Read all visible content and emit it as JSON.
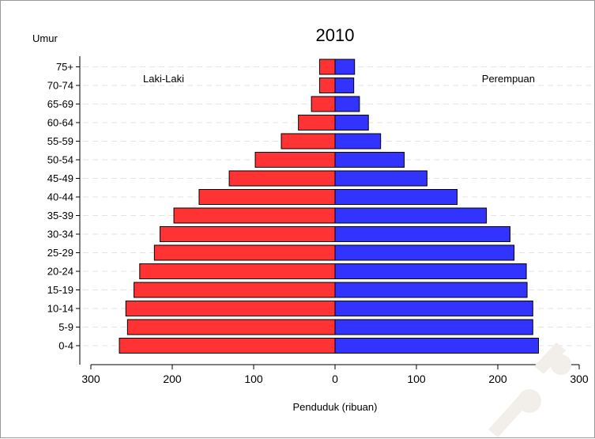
{
  "chart_data": {
    "type": "bar",
    "subtype": "population-pyramid",
    "title": "2010",
    "ylabel": "Umur",
    "xlabel": "Penduduk (ribuan)",
    "categories": [
      "0-4",
      "5-9",
      "10-14",
      "15-19",
      "20-24",
      "25-29",
      "30-34",
      "35-39",
      "40-44",
      "45-49",
      "50-54",
      "55-59",
      "60-64",
      "65-69",
      "70-74",
      "75+"
    ],
    "series": [
      {
        "name": "Laki-Laki",
        "side": "left",
        "color": "#ff3333",
        "values": [
          265,
          255,
          257,
          247,
          240,
          222,
          215,
          198,
          167,
          130,
          98,
          66,
          45,
          29,
          19,
          19
        ]
      },
      {
        "name": "Perempuan",
        "side": "right",
        "color": "#3333ff",
        "values": [
          250,
          243,
          243,
          236,
          235,
          220,
          215,
          186,
          150,
          113,
          85,
          56,
          41,
          30,
          23,
          24
        ]
      }
    ],
    "xlim": [
      -300,
      300
    ],
    "xticks": [
      -300,
      -200,
      -100,
      0,
      100,
      200,
      300
    ],
    "xtick_labels": [
      "300",
      "200",
      "100",
      "0",
      "100",
      "200",
      "300"
    ],
    "grid": "horizontal dashed",
    "legend": "series names printed inside plot, top-left and top-right"
  }
}
